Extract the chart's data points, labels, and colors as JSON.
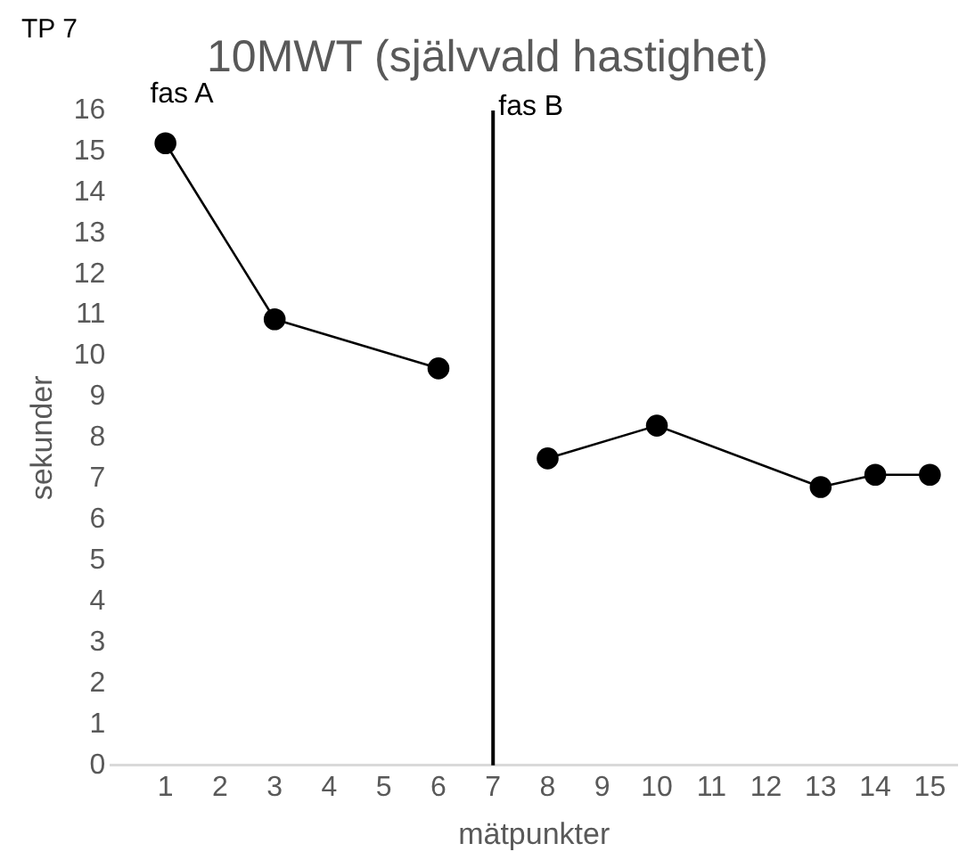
{
  "chart_data": {
    "type": "line",
    "title": "10MWT (självvald hastighet)",
    "xlabel": "mätpunkter",
    "ylabel": "sekunder",
    "series": [
      {
        "color": "#000000",
        "x": [
          1,
          3,
          6
        ],
        "values": [
          15.2,
          10.9,
          9.7
        ]
      },
      {
        "color": "#000000",
        "x": [
          8,
          10,
          13,
          14,
          15
        ],
        "values": [
          7.5,
          8.3,
          6.8,
          7.1,
          7.1
        ]
      }
    ],
    "xlim": [
      0,
      15.5
    ],
    "xticks": [
      1,
      2,
      3,
      4,
      5,
      6,
      7,
      8,
      9,
      10,
      11,
      12,
      13,
      14,
      15
    ],
    "ylim": [
      0,
      16
    ],
    "yticks": [
      0,
      1,
      2,
      3,
      4,
      5,
      6,
      7,
      8,
      9,
      10,
      11,
      12,
      13,
      14,
      15,
      16
    ],
    "ref_lines": [
      {
        "axis": "x",
        "value": 7,
        "color": "#000000"
      }
    ],
    "annotations": [
      "TP 7",
      "fas A",
      {
        "text": "fas B",
        "x": 7,
        "y": 16
      }
    ],
    "marker": "circle",
    "line_style": "solid",
    "grid": false,
    "legend": false
  }
}
